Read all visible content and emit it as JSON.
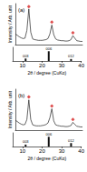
{
  "chart_data": [
    {
      "type": "line",
      "title": "(a)",
      "ylabel": "Intensity / Arb. unit",
      "tick_labels": false,
      "xlim": [
        5,
        40
      ],
      "ylim": [
        0,
        115
      ],
      "x": [
        5,
        6,
        7,
        8,
        9,
        10,
        11,
        12,
        13,
        14,
        15,
        16,
        17,
        18,
        19,
        20,
        21,
        22,
        23,
        24,
        25,
        26,
        27,
        28,
        29,
        30,
        31,
        32,
        33,
        34,
        35,
        36,
        37,
        38,
        39,
        40
      ],
      "series": [
        {
          "type": "line",
          "color": "#222222",
          "values": [
            30,
            26,
            22,
            19,
            17,
            18,
            40,
            100,
            35,
            16,
            14,
            13,
            12,
            12,
            12,
            13,
            14,
            17,
            30,
            55,
            28,
            16,
            13,
            12,
            11,
            11,
            10,
            10,
            11,
            14,
            25,
            18,
            11,
            10,
            9,
            9
          ]
        },
        {
          "type": "scatter",
          "marker": "diamond",
          "color": "#d62020",
          "x": [
            12,
            24,
            35
          ],
          "values": [
            107,
            63,
            33
          ]
        }
      ]
    },
    {
      "type": "bar",
      "tick_labels": "x",
      "xlabel": "2θ / degree (CuKα)",
      "xlim": [
        5,
        40
      ],
      "xticks": [
        10,
        20,
        30,
        40
      ],
      "ylim": [
        0,
        140
      ],
      "color": "#111111",
      "x": [
        11.6,
        23.4,
        34.8
      ],
      "values": [
        25,
        100,
        20
      ],
      "annotations": [
        "003",
        "006",
        "012"
      ]
    },
    {
      "type": "line",
      "title": "(b)",
      "ylabel": "Intensity / Arb. unit",
      "tick_labels": false,
      "xlim": [
        5,
        40
      ],
      "ylim": [
        0,
        115
      ],
      "x": [
        5,
        6,
        7,
        8,
        9,
        10,
        11,
        12,
        13,
        14,
        15,
        16,
        17,
        18,
        19,
        20,
        21,
        22,
        23,
        24,
        25,
        26,
        27,
        28,
        29,
        30,
        31,
        32,
        33,
        34,
        35,
        36,
        37,
        38,
        39,
        40
      ],
      "series": [
        {
          "type": "line",
          "color": "#222222",
          "values": [
            28,
            24,
            20,
            17,
            15,
            16,
            30,
            85,
            30,
            15,
            13,
            12,
            12,
            12,
            13,
            14,
            16,
            20,
            35,
            60,
            26,
            15,
            13,
            12,
            11,
            11,
            10,
            10,
            11,
            13,
            22,
            16,
            11,
            10,
            9,
            9
          ]
        },
        {
          "type": "scatter",
          "marker": "diamond",
          "color": "#d62020",
          "x": [
            12,
            24,
            35
          ],
          "values": [
            93,
            68,
            30
          ]
        }
      ]
    },
    {
      "type": "bar",
      "tick_labels": "x",
      "xlabel": "2θ / degree (CuKα)",
      "xlim": [
        5,
        40
      ],
      "xticks": [
        10,
        20,
        30,
        40
      ],
      "ylim": [
        0,
        140
      ],
      "color": "#111111",
      "x": [
        11.6,
        23.4,
        34.8
      ],
      "values": [
        20,
        100,
        35
      ],
      "annotations": [
        "003",
        "006",
        "012"
      ]
    }
  ]
}
